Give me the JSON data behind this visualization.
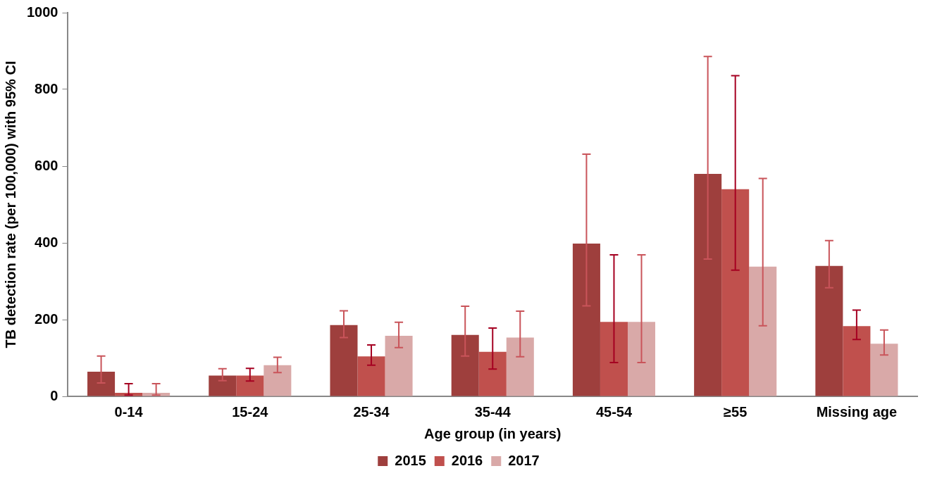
{
  "chart_data": {
    "type": "bar",
    "xlabel": "Age group (in years)",
    "ylabel": "TB detection rate (per 100,000) with 95% CI",
    "categories": [
      "0-14",
      "15-24",
      "25-34",
      "35-44",
      "45-54",
      "≥55",
      "Missing age"
    ],
    "series": [
      {
        "name": "2015",
        "color": "#9e3f3d",
        "values": [
          64,
          54,
          186,
          160,
          398,
          580,
          340
        ],
        "errors": [
          [
            35,
            105
          ],
          [
            41,
            72
          ],
          [
            153,
            223
          ],
          [
            105,
            235
          ],
          [
            236,
            631
          ],
          [
            358,
            886
          ],
          [
            283,
            406
          ]
        ]
      },
      {
        "name": "2016",
        "color": "#c0504d",
        "values": [
          9,
          54,
          104,
          116,
          194,
          540,
          183
        ],
        "errors": [
          [
            3,
            33
          ],
          [
            40,
            73
          ],
          [
            81,
            134
          ],
          [
            71,
            178
          ],
          [
            88,
            369
          ],
          [
            329,
            836
          ],
          [
            148,
            225
          ]
        ]
      },
      {
        "name": "2017",
        "color": "#d9a9a8",
        "values": [
          9,
          81,
          158,
          153,
          194,
          338,
          137
        ],
        "errors": [
          [
            3,
            33
          ],
          [
            62,
            102
          ],
          [
            127,
            193
          ],
          [
            103,
            222
          ],
          [
            88,
            369
          ],
          [
            184,
            568
          ],
          [
            108,
            173
          ]
        ]
      }
    ],
    "ylim": [
      0,
      1000
    ],
    "yticks": [
      0,
      200,
      400,
      600,
      800,
      1000
    ],
    "grid": false,
    "legend": "bottom"
  }
}
